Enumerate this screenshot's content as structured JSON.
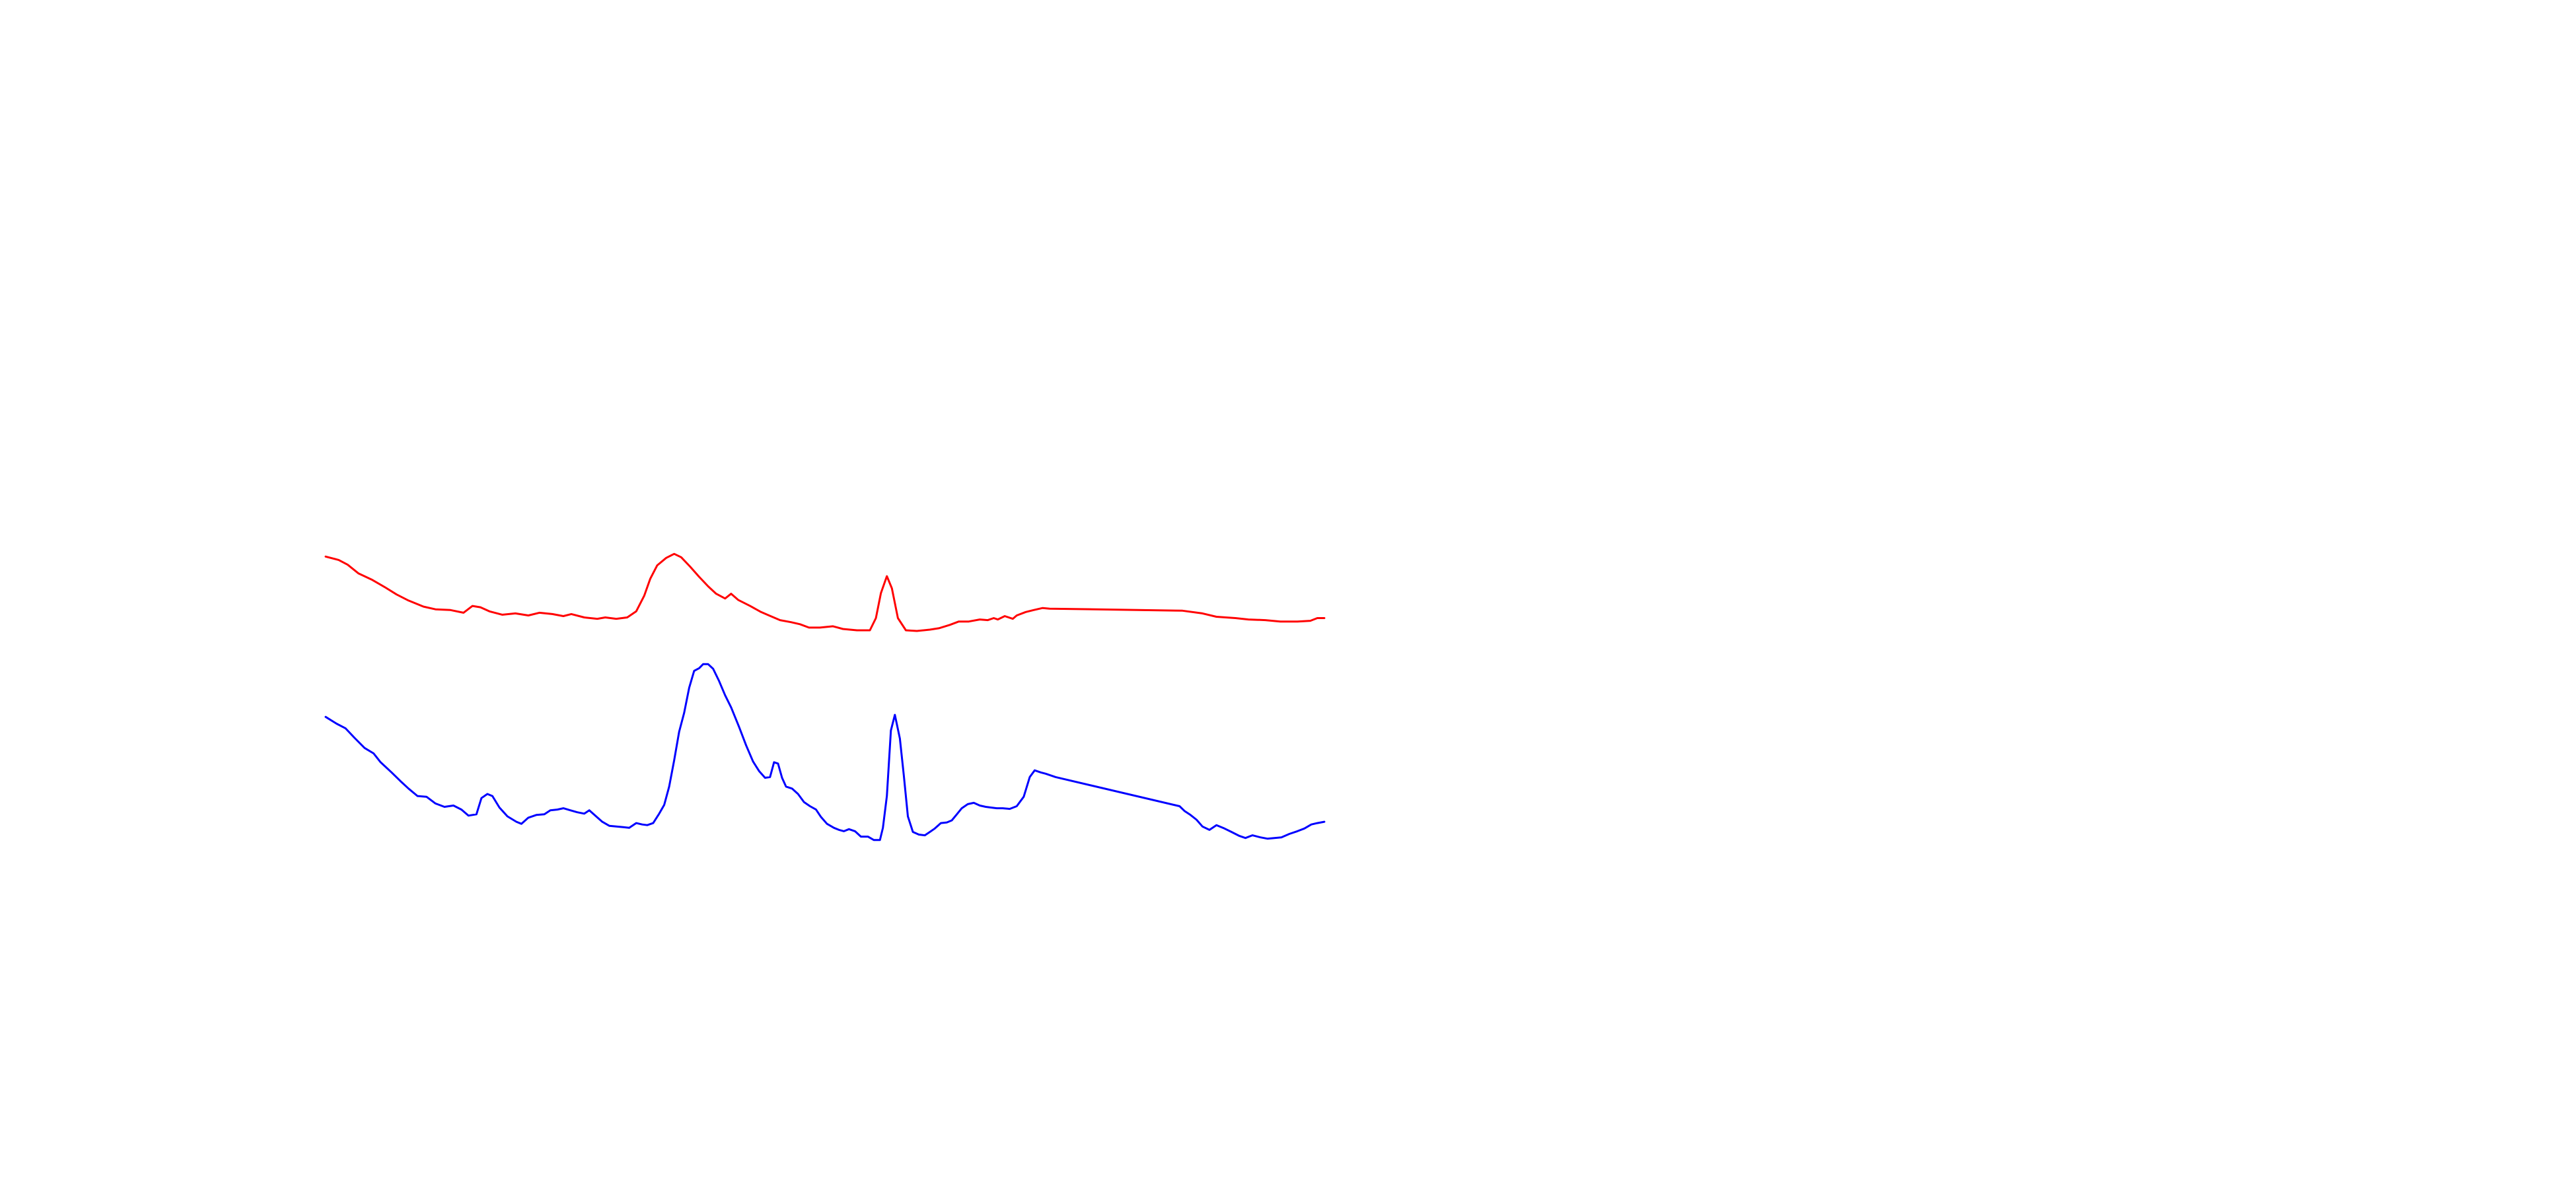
{
  "chart_data": {
    "type": "line",
    "title": "",
    "xlabel": "",
    "ylabel": "",
    "axes_visible": false,
    "grid": false,
    "legend": "none",
    "xlim": [
      0,
      100
    ],
    "ylim": [
      0,
      100
    ],
    "series": [
      {
        "color": "#ff0000",
        "points": [
          [
            0.0,
            70.9
          ],
          [
            1.3,
            70.4
          ],
          [
            2.2,
            69.7
          ],
          [
            3.3,
            68.4
          ],
          [
            4.6,
            67.5
          ],
          [
            5.9,
            66.4
          ],
          [
            7.1,
            65.3
          ],
          [
            8.3,
            64.4
          ],
          [
            9.8,
            63.5
          ],
          [
            11.0,
            63.1
          ],
          [
            12.5,
            63.0
          ],
          [
            13.8,
            62.6
          ],
          [
            14.7,
            63.6
          ],
          [
            15.5,
            63.4
          ],
          [
            16.4,
            62.8
          ],
          [
            17.7,
            62.3
          ],
          [
            19.0,
            62.5
          ],
          [
            20.3,
            62.2
          ],
          [
            21.4,
            62.6
          ],
          [
            22.7,
            62.4
          ],
          [
            23.8,
            62.1
          ],
          [
            24.6,
            62.4
          ],
          [
            25.9,
            61.9
          ],
          [
            27.2,
            61.7
          ],
          [
            28.0,
            61.9
          ],
          [
            29.1,
            61.7
          ],
          [
            30.2,
            61.9
          ],
          [
            31.1,
            62.8
          ],
          [
            31.9,
            65.1
          ],
          [
            32.5,
            67.6
          ],
          [
            33.2,
            69.6
          ],
          [
            34.1,
            70.7
          ],
          [
            34.9,
            71.3
          ],
          [
            35.6,
            70.8
          ],
          [
            36.5,
            69.4
          ],
          [
            37.4,
            67.9
          ],
          [
            38.3,
            66.5
          ],
          [
            39.1,
            65.4
          ],
          [
            40.0,
            64.7
          ],
          [
            40.6,
            65.4
          ],
          [
            41.3,
            64.5
          ],
          [
            42.5,
            63.6
          ],
          [
            43.6,
            62.7
          ],
          [
            44.4,
            62.2
          ],
          [
            45.5,
            61.5
          ],
          [
            46.6,
            61.2
          ],
          [
            47.5,
            60.9
          ],
          [
            48.4,
            60.4
          ],
          [
            49.5,
            60.4
          ],
          [
            50.8,
            60.6
          ],
          [
            51.8,
            60.2
          ],
          [
            53.2,
            60.0
          ],
          [
            54.5,
            60.0
          ],
          [
            55.1,
            61.8
          ],
          [
            55.6,
            65.5
          ],
          [
            56.2,
            68.0
          ],
          [
            56.7,
            66.2
          ],
          [
            57.3,
            61.8
          ],
          [
            58.1,
            60.0
          ],
          [
            59.2,
            59.9
          ],
          [
            60.5,
            60.1
          ],
          [
            61.4,
            60.3
          ],
          [
            62.5,
            60.8
          ],
          [
            63.4,
            61.3
          ],
          [
            64.4,
            61.3
          ],
          [
            65.5,
            61.6
          ],
          [
            66.3,
            61.5
          ],
          [
            66.9,
            61.8
          ],
          [
            67.3,
            61.6
          ],
          [
            68.0,
            62.1
          ],
          [
            68.8,
            61.7
          ],
          [
            69.2,
            62.2
          ],
          [
            70.1,
            62.7
          ],
          [
            70.9,
            63.0
          ],
          [
            71.8,
            63.3
          ],
          [
            72.5,
            63.2
          ],
          [
            85.8,
            62.9
          ],
          [
            87.8,
            62.5
          ],
          [
            89.2,
            62.0
          ],
          [
            91.1,
            61.8
          ],
          [
            92.4,
            61.6
          ],
          [
            94.1,
            61.5
          ],
          [
            95.6,
            61.3
          ],
          [
            97.3,
            61.3
          ],
          [
            98.6,
            61.4
          ],
          [
            99.3,
            61.8
          ],
          [
            100.0,
            61.8
          ]
        ]
      },
      {
        "color": "#0000ff",
        "points": [
          [
            0.0,
            47.2
          ],
          [
            1.1,
            46.2
          ],
          [
            2.0,
            45.5
          ],
          [
            2.9,
            44.1
          ],
          [
            3.9,
            42.6
          ],
          [
            4.8,
            41.8
          ],
          [
            5.5,
            40.5
          ],
          [
            6.6,
            39.0
          ],
          [
            7.5,
            37.7
          ],
          [
            8.3,
            36.6
          ],
          [
            9.2,
            35.5
          ],
          [
            10.1,
            35.4
          ],
          [
            11.0,
            34.4
          ],
          [
            11.9,
            33.9
          ],
          [
            12.8,
            34.1
          ],
          [
            13.6,
            33.5
          ],
          [
            14.3,
            32.6
          ],
          [
            15.1,
            32.8
          ],
          [
            15.6,
            35.2
          ],
          [
            16.2,
            35.8
          ],
          [
            16.7,
            35.5
          ],
          [
            17.4,
            33.8
          ],
          [
            18.2,
            32.5
          ],
          [
            19.1,
            31.7
          ],
          [
            19.6,
            31.4
          ],
          [
            20.3,
            32.3
          ],
          [
            21.1,
            32.7
          ],
          [
            21.9,
            32.8
          ],
          [
            22.5,
            33.4
          ],
          [
            23.2,
            33.5
          ],
          [
            23.8,
            33.7
          ],
          [
            24.5,
            33.4
          ],
          [
            25.2,
            33.1
          ],
          [
            25.9,
            32.9
          ],
          [
            26.4,
            33.4
          ],
          [
            27.0,
            32.6
          ],
          [
            27.7,
            31.7
          ],
          [
            28.4,
            31.1
          ],
          [
            29.1,
            31.0
          ],
          [
            29.8,
            30.9
          ],
          [
            30.4,
            30.8
          ],
          [
            31.1,
            31.5
          ],
          [
            31.7,
            31.3
          ],
          [
            32.2,
            31.2
          ],
          [
            32.8,
            31.5
          ],
          [
            33.4,
            32.9
          ],
          [
            33.9,
            34.2
          ],
          [
            34.4,
            36.9
          ],
          [
            34.9,
            40.8
          ],
          [
            35.4,
            45.0
          ],
          [
            35.9,
            47.8
          ],
          [
            36.4,
            51.5
          ],
          [
            36.9,
            54.0
          ],
          [
            37.4,
            54.4
          ],
          [
            37.8,
            55.0
          ],
          [
            38.3,
            55.0
          ],
          [
            38.8,
            54.3
          ],
          [
            39.4,
            52.5
          ],
          [
            40.0,
            50.4
          ],
          [
            40.6,
            48.6
          ],
          [
            41.4,
            45.7
          ],
          [
            42.1,
            43.0
          ],
          [
            42.8,
            40.6
          ],
          [
            43.4,
            39.2
          ],
          [
            44.0,
            38.2
          ],
          [
            44.5,
            38.3
          ],
          [
            44.9,
            40.5
          ],
          [
            45.3,
            40.3
          ],
          [
            45.7,
            38.2
          ],
          [
            46.1,
            36.9
          ],
          [
            46.7,
            36.6
          ],
          [
            47.3,
            35.8
          ],
          [
            47.9,
            34.6
          ],
          [
            48.5,
            34.0
          ],
          [
            49.1,
            33.5
          ],
          [
            49.6,
            32.4
          ],
          [
            50.2,
            31.4
          ],
          [
            50.9,
            30.8
          ],
          [
            51.4,
            30.5
          ],
          [
            51.9,
            30.3
          ],
          [
            52.4,
            30.6
          ],
          [
            53.0,
            30.3
          ],
          [
            53.6,
            29.5
          ],
          [
            54.3,
            29.5
          ],
          [
            54.9,
            29.0
          ],
          [
            55.5,
            29.0
          ],
          [
            55.8,
            30.8
          ],
          [
            56.2,
            35.5
          ],
          [
            56.6,
            45.2
          ],
          [
            57.0,
            47.5
          ],
          [
            57.5,
            44.0
          ],
          [
            57.9,
            38.5
          ],
          [
            58.3,
            32.5
          ],
          [
            58.8,
            30.2
          ],
          [
            59.4,
            29.8
          ],
          [
            60.0,
            29.7
          ],
          [
            60.5,
            30.2
          ],
          [
            61.0,
            30.7
          ],
          [
            61.6,
            31.5
          ],
          [
            62.2,
            31.6
          ],
          [
            62.7,
            31.9
          ],
          [
            63.2,
            32.8
          ],
          [
            63.7,
            33.7
          ],
          [
            64.3,
            34.3
          ],
          [
            64.9,
            34.5
          ],
          [
            65.5,
            34.1
          ],
          [
            66.1,
            33.9
          ],
          [
            66.6,
            33.8
          ],
          [
            67.2,
            33.7
          ],
          [
            67.8,
            33.7
          ],
          [
            68.5,
            33.6
          ],
          [
            69.2,
            34.0
          ],
          [
            69.9,
            35.4
          ],
          [
            70.5,
            38.3
          ],
          [
            71.0,
            39.3
          ],
          [
            71.6,
            39.0
          ],
          [
            72.1,
            38.8
          ],
          [
            73.1,
            38.3
          ],
          [
            85.5,
            34.0
          ],
          [
            86.0,
            33.3
          ],
          [
            86.6,
            32.7
          ],
          [
            87.2,
            32.0
          ],
          [
            87.8,
            31.0
          ],
          [
            88.5,
            30.5
          ],
          [
            89.2,
            31.2
          ],
          [
            90.0,
            30.7
          ],
          [
            90.7,
            30.2
          ],
          [
            91.5,
            29.6
          ],
          [
            92.1,
            29.3
          ],
          [
            92.8,
            29.7
          ],
          [
            93.6,
            29.4
          ],
          [
            94.3,
            29.2
          ],
          [
            95.0,
            29.3
          ],
          [
            95.7,
            29.4
          ],
          [
            96.5,
            29.9
          ],
          [
            97.3,
            30.3
          ],
          [
            98.0,
            30.7
          ],
          [
            98.7,
            31.3
          ],
          [
            99.3,
            31.5
          ],
          [
            100.0,
            31.7
          ]
        ]
      }
    ]
  }
}
